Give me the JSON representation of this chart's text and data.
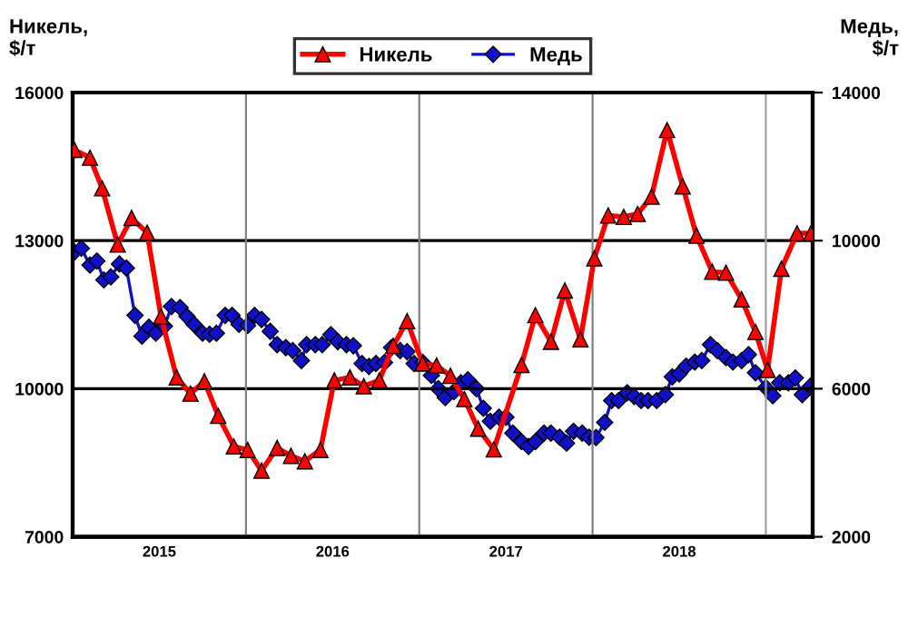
{
  "chart_data": {
    "type": "line",
    "ylabel": "Никель,\n$/т",
    "y2label": "Медь,\n$/т",
    "xlim": [
      2015,
      2019.27
    ],
    "xticks": [
      {
        "value": 2015.5,
        "label": "2015"
      },
      {
        "value": 2016.5,
        "label": "2016"
      },
      {
        "value": 2017.5,
        "label": "2017"
      },
      {
        "value": 2018.5,
        "label": "2018"
      }
    ],
    "ylim": [
      7000,
      16000
    ],
    "yticks": [
      7000,
      10000,
      13000,
      16000
    ],
    "y2lim": [
      2000,
      14000
    ],
    "y2ticks": [
      2000,
      6000,
      10000,
      14000
    ],
    "grid": "y",
    "legend": "top",
    "ref_lines": [
      {
        "axis": "x",
        "value": 2016,
        "color": "#808080"
      },
      {
        "axis": "x",
        "value": 2017,
        "color": "#808080"
      },
      {
        "axis": "x",
        "value": 2018,
        "color": "#808080"
      },
      {
        "axis": "x",
        "value": 2019,
        "color": "#a0a0a0"
      }
    ],
    "series": [
      {
        "name": "Никель",
        "color": "#ff0000",
        "marker": "triangle",
        "x": [
          2015.01,
          2015.1,
          2015.17,
          2015.26,
          2015.34,
          2015.43,
          2015.51,
          2015.6,
          2015.68,
          2015.76,
          2015.84,
          2015.93,
          2016.01,
          2016.09,
          2016.18,
          2016.26,
          2016.34,
          2016.43,
          2016.51,
          2016.6,
          2016.68,
          2016.77,
          2016.85,
          2016.93,
          2017.02,
          2017.1,
          2017.18,
          2017.26,
          2017.34,
          2017.43,
          2017.59,
          2017.67,
          2017.76,
          2017.84,
          2017.93,
          2018.01,
          2018.09,
          2018.18,
          2018.26,
          2018.34,
          2018.43,
          2018.52,
          2018.6,
          2018.69,
          2018.77,
          2018.86,
          2018.94,
          2019.01,
          2019.09,
          2019.18,
          2019.26
        ],
        "values": [
          14840,
          14680,
          14060,
          12920,
          13460,
          13160,
          11460,
          10230,
          9900,
          10150,
          9450,
          8830,
          8760,
          8340,
          8800,
          8640,
          8530,
          8760,
          10170,
          10230,
          10050,
          10170,
          10870,
          11370,
          10510,
          10470,
          10260,
          9790,
          9190,
          8770,
          10480,
          11490,
          10950,
          11990,
          11000,
          12640,
          13510,
          13480,
          13540,
          13890,
          15240,
          14100,
          13100,
          12370,
          12350,
          11810,
          11150,
          10380,
          12430,
          13150,
          13150
        ]
      },
      {
        "name": "Медь",
        "color": "#1010c8",
        "marker": "diamond",
        "axis": "y2",
        "x": [
          2015.01,
          2015.05,
          2015.1,
          2015.14,
          2015.18,
          2015.22,
          2015.27,
          2015.31,
          2015.36,
          2015.4,
          2015.44,
          2015.48,
          2015.53,
          2015.57,
          2015.62,
          2015.66,
          2015.7,
          2015.75,
          2015.79,
          2015.83,
          2015.88,
          2015.92,
          2015.96,
          2016.01,
          2016.05,
          2016.09,
          2016.14,
          2016.18,
          2016.23,
          2016.27,
          2016.32,
          2016.35,
          2016.4,
          2016.44,
          2016.49,
          2016.53,
          2016.58,
          2016.62,
          2016.67,
          2016.71,
          2016.75,
          2016.8,
          2016.84,
          2016.89,
          2016.93,
          2016.97,
          2017.02,
          2017.07,
          2017.11,
          2017.15,
          2017.2,
          2017.24,
          2017.28,
          2017.33,
          2017.37,
          2017.41,
          2017.46,
          2017.5,
          2017.54,
          2017.59,
          2017.63,
          2017.67,
          2017.72,
          2017.76,
          2017.81,
          2017.85,
          2017.89,
          2017.94,
          2017.98,
          2018.02,
          2018.07,
          2018.11,
          2018.15,
          2018.2,
          2018.24,
          2018.28,
          2018.32,
          2018.37,
          2018.42,
          2018.46,
          2018.5,
          2018.54,
          2018.59,
          2018.63,
          2018.68,
          2018.72,
          2018.77,
          2018.81,
          2018.86,
          2018.9,
          2018.94,
          2019.0,
          2019.04,
          2019.08,
          2019.13,
          2019.17,
          2019.21,
          2019.26
        ],
        "values": [
          9690,
          9790,
          9340,
          9450,
          8940,
          9020,
          9370,
          9260,
          7980,
          7420,
          7660,
          7500,
          7690,
          8220,
          8190,
          7950,
          7740,
          7500,
          7470,
          7500,
          7980,
          7980,
          7740,
          7710,
          7980,
          7870,
          7550,
          7190,
          7110,
          7030,
          6760,
          7190,
          7190,
          7190,
          7460,
          7270,
          7190,
          7160,
          6680,
          6600,
          6680,
          6710,
          7110,
          7030,
          7000,
          6680,
          6710,
          6360,
          6000,
          5760,
          5920,
          6160,
          6240,
          6000,
          5470,
          5120,
          5230,
          5230,
          4800,
          4570,
          4440,
          4570,
          4800,
          4800,
          4690,
          4530,
          4850,
          4800,
          4690,
          4680,
          5090,
          5680,
          5680,
          5890,
          5790,
          5680,
          5680,
          5680,
          5840,
          6320,
          6400,
          6610,
          6720,
          6760,
          7190,
          7030,
          6840,
          6720,
          6760,
          6920,
          6430,
          6030,
          5810,
          6160,
          6160,
          6290,
          5840,
          6080
        ]
      }
    ]
  }
}
